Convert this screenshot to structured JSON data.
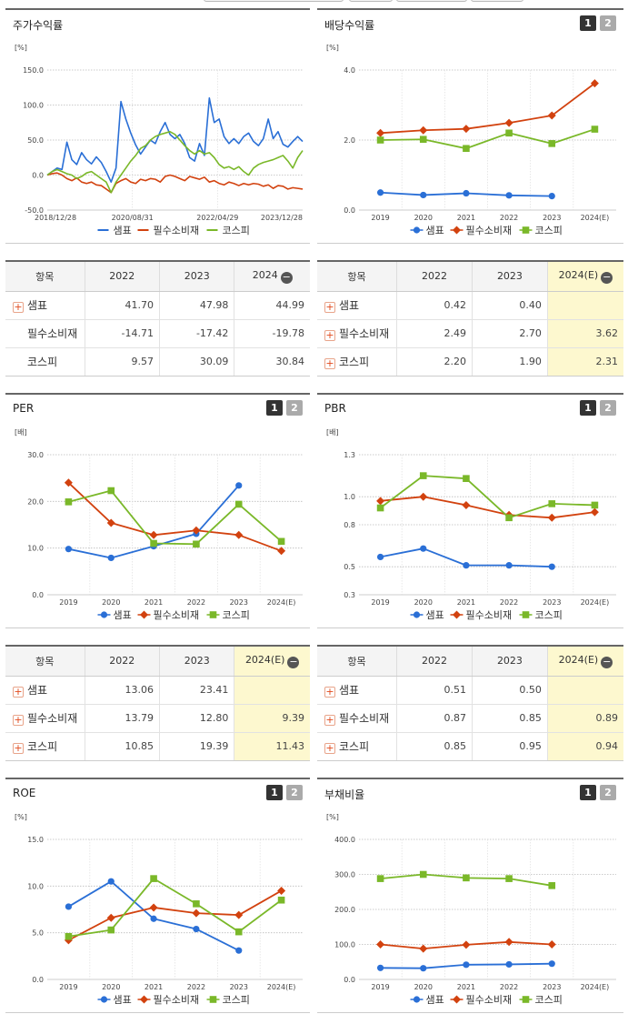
{
  "header": {
    "top_right_text": ""
  },
  "panels": [
    {
      "id": "price",
      "title": "주가수익률",
      "toggle": null,
      "legend": [
        "샘표",
        "필수소비재",
        "코스피"
      ],
      "chart_data": {
        "type": "line",
        "ylabel": "[%]",
        "ylim": [
          -50,
          150
        ],
        "yticks": [
          "150.0",
          "100.0",
          "50.0",
          "0.0",
          "-50.0"
        ],
        "xticklabels": [
          "2018/12/28",
          "2020/08/31",
          "2022/04/29",
          "2023/12/28"
        ],
        "x_note": "weekly index, 0 = 2018/12/28, 260 = 2023/12/28",
        "series": [
          {
            "name": "샘표",
            "x": [
              0,
              5,
              10,
              15,
              20,
              25,
              30,
              35,
              40,
              45,
              50,
              55,
              60,
              65,
              70,
              75,
              80,
              85,
              90,
              95,
              100,
              105,
              110,
              115,
              120,
              125,
              130,
              135,
              140,
              145,
              150,
              155,
              160,
              165,
              170,
              175,
              180,
              185,
              190,
              195,
              200,
              205,
              210,
              215,
              220,
              225,
              230,
              235,
              240,
              245,
              250,
              255,
              260
            ],
            "values": [
              0,
              5,
              10,
              8,
              47,
              22,
              15,
              32,
              22,
              16,
              26,
              18,
              5,
              -10,
              10,
              105,
              80,
              60,
              43,
              30,
              40,
              50,
              45,
              62,
              75,
              58,
              52,
              58,
              45,
              25,
              20,
              45,
              28,
              110,
              75,
              80,
              55,
              45,
              52,
              45,
              55,
              60,
              48,
              42,
              52,
              80,
              52,
              62,
              44,
              40,
              48,
              55,
              48
            ]
          },
          {
            "name": "필수소비재",
            "x": [
              0,
              5,
              10,
              15,
              20,
              25,
              30,
              35,
              40,
              45,
              50,
              55,
              60,
              65,
              70,
              75,
              80,
              85,
              90,
              95,
              100,
              105,
              110,
              115,
              120,
              125,
              130,
              135,
              140,
              145,
              150,
              155,
              160,
              165,
              170,
              175,
              180,
              185,
              190,
              195,
              200,
              205,
              210,
              215,
              220,
              225,
              230,
              235,
              240,
              245,
              250,
              255,
              260
            ],
            "values": [
              0,
              2,
              3,
              0,
              -5,
              -8,
              -4,
              -10,
              -12,
              -10,
              -14,
              -15,
              -20,
              -25,
              -12,
              -8,
              -5,
              -10,
              -12,
              -6,
              -8,
              -5,
              -6,
              -10,
              -2,
              0,
              -2,
              -5,
              -8,
              -2,
              -4,
              -6,
              -3,
              -10,
              -8,
              -12,
              -14,
              -10,
              -12,
              -15,
              -12,
              -14,
              -12,
              -13,
              -16,
              -14,
              -19,
              -15,
              -16,
              -20,
              -18,
              -19,
              -20
            ]
          },
          {
            "name": "코스피",
            "x": [
              0,
              5,
              10,
              15,
              20,
              25,
              30,
              35,
              40,
              45,
              50,
              55,
              60,
              65,
              70,
              75,
              80,
              85,
              90,
              95,
              100,
              105,
              110,
              115,
              120,
              125,
              130,
              135,
              140,
              145,
              150,
              155,
              160,
              165,
              170,
              175,
              180,
              185,
              190,
              195,
              200,
              205,
              210,
              215,
              220,
              225,
              230,
              235,
              240,
              245,
              250,
              255,
              260
            ],
            "values": [
              0,
              5,
              8,
              5,
              2,
              0,
              -5,
              -2,
              3,
              5,
              0,
              -5,
              -10,
              -25,
              -10,
              0,
              10,
              20,
              28,
              38,
              42,
              50,
              55,
              58,
              60,
              62,
              58,
              50,
              42,
              35,
              30,
              35,
              30,
              32,
              25,
              15,
              10,
              12,
              8,
              12,
              5,
              0,
              10,
              15,
              18,
              20,
              22,
              25,
              28,
              20,
              10,
              25,
              35
            ]
          }
        ]
      }
    },
    {
      "id": "dividend",
      "title": "배당수익률",
      "toggle": [
        "1",
        "2"
      ],
      "legend": [
        "샘표",
        "필수소비재",
        "코스피"
      ],
      "chart_data": {
        "type": "line",
        "ylabel": "[%]",
        "ylim": [
          0,
          4
        ],
        "yticks": [
          "4.0",
          "2.0",
          "0.0"
        ],
        "categories": [
          "2019",
          "2020",
          "2021",
          "2022",
          "2023",
          "2024(E)"
        ],
        "series": [
          {
            "name": "샘표",
            "values": [
              0.5,
              0.43,
              0.48,
              0.42,
              0.4,
              null
            ]
          },
          {
            "name": "필수소비재",
            "values": [
              2.2,
              2.28,
              2.32,
              2.49,
              2.7,
              3.62
            ]
          },
          {
            "name": "코스피",
            "values": [
              2.0,
              2.02,
              1.76,
              2.2,
              1.9,
              2.31
            ]
          }
        ]
      }
    },
    {
      "id": "per",
      "title": "PER",
      "toggle": [
        "1",
        "2"
      ],
      "legend": [
        "샘표",
        "필수소비재",
        "코스피"
      ],
      "chart_data": {
        "type": "line",
        "ylabel": "[배]",
        "ylim": [
          0,
          30
        ],
        "yticks": [
          "30.0",
          "20.0",
          "10.0",
          "0.0"
        ],
        "categories": [
          "2019",
          "2020",
          "2021",
          "2022",
          "2023",
          "2024(E)"
        ],
        "series": [
          {
            "name": "샘표",
            "values": [
              9.8,
              7.9,
              10.4,
              13.06,
              23.41,
              null
            ]
          },
          {
            "name": "필수소비재",
            "values": [
              24.0,
              15.4,
              12.8,
              13.79,
              12.8,
              9.39
            ]
          },
          {
            "name": "코스피",
            "values": [
              19.9,
              22.3,
              11.0,
              10.85,
              19.39,
              11.43
            ]
          }
        ]
      }
    },
    {
      "id": "pbr",
      "title": "PBR",
      "toggle": [
        "1",
        "2"
      ],
      "legend": [
        "샘표",
        "필수소비재",
        "코스피"
      ],
      "chart_data": {
        "type": "line",
        "ylabel": "[배]",
        "ylim": [
          0.3,
          1.3
        ],
        "yticks": [
          "1.3",
          "1.0",
          "0.8",
          "0.5",
          "0.3"
        ],
        "categories": [
          "2019",
          "2020",
          "2021",
          "2022",
          "2023",
          "2024(E)"
        ],
        "series": [
          {
            "name": "샘표",
            "values": [
              0.57,
              0.63,
              0.51,
              0.51,
              0.5,
              null
            ]
          },
          {
            "name": "필수소비재",
            "values": [
              0.97,
              1.0,
              0.94,
              0.87,
              0.85,
              0.89
            ]
          },
          {
            "name": "코스피",
            "values": [
              0.92,
              1.15,
              1.13,
              0.85,
              0.95,
              0.94
            ]
          }
        ]
      }
    },
    {
      "id": "roe",
      "title": "ROE",
      "toggle": [
        "1",
        "2"
      ],
      "legend": [
        "샘표",
        "필수소비재",
        "코스피"
      ],
      "chart_data": {
        "type": "line",
        "ylabel": "[%]",
        "ylim": [
          0,
          15
        ],
        "yticks": [
          "15.0",
          "10.0",
          "5.0",
          "0.0"
        ],
        "categories": [
          "2019",
          "2020",
          "2021",
          "2022",
          "2023",
          "2024(E)"
        ],
        "series": [
          {
            "name": "샘표",
            "values": [
              7.8,
              10.5,
              6.5,
              5.4,
              3.1,
              null
            ]
          },
          {
            "name": "필수소비재",
            "values": [
              4.2,
              6.6,
              7.7,
              7.1,
              6.9,
              9.5
            ]
          },
          {
            "name": "코스피",
            "values": [
              4.6,
              5.3,
              10.8,
              8.1,
              5.1,
              8.5
            ]
          }
        ]
      }
    },
    {
      "id": "debt",
      "title": "부채비율",
      "toggle": [
        "1",
        "2"
      ],
      "legend": [
        "샘표",
        "필수소비재",
        "코스피"
      ],
      "chart_data": {
        "type": "line",
        "ylabel": "[%]",
        "ylim": [
          0,
          400
        ],
        "yticks": [
          "400.0",
          "300.0",
          "200.0",
          "100.0",
          "0.0"
        ],
        "categories": [
          "2019",
          "2020",
          "2021",
          "2022",
          "2023",
          "2024(E)"
        ],
        "series": [
          {
            "name": "샘표",
            "values": [
              33,
              32,
              42,
              43,
              45,
              null
            ]
          },
          {
            "name": "필수소비재",
            "values": [
              100,
              88,
              99,
              107,
              100,
              null
            ]
          },
          {
            "name": "코스피",
            "values": [
              288,
              300,
              290,
              288,
              268,
              null
            ]
          }
        ]
      }
    }
  ],
  "tables": [
    {
      "id": "price-table",
      "header": [
        "항목",
        "2022",
        "2023",
        "2024"
      ],
      "hl_last": false,
      "rows": [
        {
          "label": "샘표",
          "plus": true,
          "cells": [
            "41.70",
            "47.98",
            "44.99"
          ]
        },
        {
          "label": "필수소비재",
          "plus": false,
          "cells": [
            "-14.71",
            "-17.42",
            "-19.78"
          ]
        },
        {
          "label": "코스피",
          "plus": false,
          "cells": [
            "9.57",
            "30.09",
            "30.84"
          ]
        }
      ]
    },
    {
      "id": "dividend-table",
      "header": [
        "항목",
        "2022",
        "2023",
        "2024(E)"
      ],
      "hl_last": true,
      "rows": [
        {
          "label": "샘표",
          "plus": true,
          "cells": [
            "0.42",
            "0.40",
            ""
          ]
        },
        {
          "label": "필수소비재",
          "plus": true,
          "cells": [
            "2.49",
            "2.70",
            "3.62"
          ]
        },
        {
          "label": "코스피",
          "plus": true,
          "cells": [
            "2.20",
            "1.90",
            "2.31"
          ]
        }
      ]
    },
    {
      "id": "per-table",
      "header": [
        "항목",
        "2022",
        "2023",
        "2024(E)"
      ],
      "hl_last": true,
      "rows": [
        {
          "label": "샘표",
          "plus": true,
          "cells": [
            "13.06",
            "23.41",
            ""
          ]
        },
        {
          "label": "필수소비재",
          "plus": true,
          "cells": [
            "13.79",
            "12.80",
            "9.39"
          ]
        },
        {
          "label": "코스피",
          "plus": true,
          "cells": [
            "10.85",
            "19.39",
            "11.43"
          ]
        }
      ]
    },
    {
      "id": "pbr-table",
      "header": [
        "항목",
        "2022",
        "2023",
        "2024(E)"
      ],
      "hl_last": true,
      "rows": [
        {
          "label": "샘표",
          "plus": true,
          "cells": [
            "0.51",
            "0.50",
            ""
          ]
        },
        {
          "label": "필수소비재",
          "plus": true,
          "cells": [
            "0.87",
            "0.85",
            "0.89"
          ]
        },
        {
          "label": "코스피",
          "plus": true,
          "cells": [
            "0.85",
            "0.95",
            "0.94"
          ]
        }
      ]
    }
  ],
  "colors": {
    "samp": "#2a6fd6",
    "staples": "#d2420f",
    "kospi": "#7ab829"
  }
}
